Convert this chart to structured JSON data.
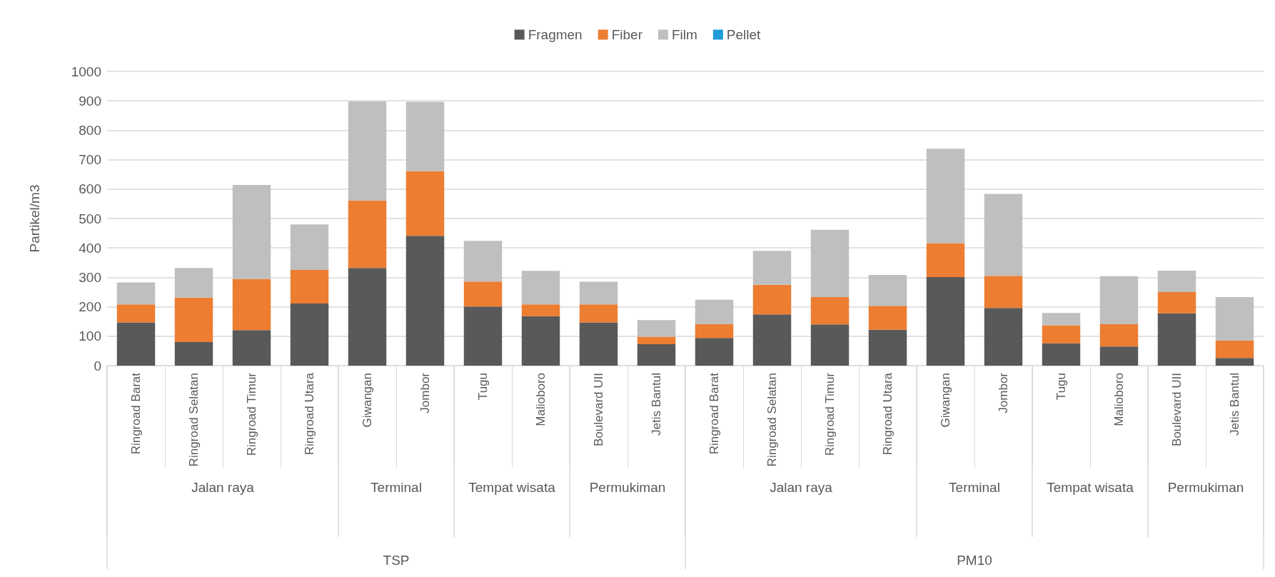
{
  "chart_data": {
    "type": "bar",
    "stacked": true,
    "ylabel": "Partikel/m3",
    "categories": [
      "Ringroad Barat",
      "Ringroad Selatan",
      "Ringroad Timur",
      "Ringroad Utara",
      "Giwangan",
      "Jombor",
      "Tugu",
      "Malioboro",
      "Boulevard UII",
      "Jetis Bantul",
      "Ringroad Barat",
      "Ringroad Selatan",
      "Ringroad Timur",
      "Ringroad Utara",
      "Giwangan",
      "Jombor",
      "Tugu",
      "Malioboro",
      "Boulevard UII",
      "Jetis Bantul"
    ],
    "series": [
      {
        "name": "Fragmen",
        "color": "#595959",
        "values": [
          147,
          80,
          121,
          211,
          332,
          441,
          201,
          168,
          147,
          73,
          94,
          174,
          140,
          122,
          301,
          196,
          76,
          65,
          178,
          26
        ]
      },
      {
        "name": "Fiber",
        "color": "#ed7d31",
        "values": [
          61,
          151,
          174,
          114,
          229,
          220,
          85,
          40,
          61,
          25,
          47,
          101,
          93,
          81,
          115,
          109,
          61,
          76,
          72,
          59
        ]
      },
      {
        "name": "Film",
        "color": "#bfbfbf",
        "values": [
          75,
          101,
          319,
          155,
          337,
          236,
          138,
          114,
          77,
          57,
          83,
          115,
          229,
          105,
          321,
          279,
          42,
          163,
          73,
          148
        ]
      },
      {
        "name": "Pellet",
        "color": "#1f9bd7",
        "values": [
          0,
          0,
          0,
          0,
          0,
          0,
          0,
          0,
          0,
          0,
          0,
          0,
          0,
          0,
          0,
          0,
          0,
          0,
          0,
          0
        ]
      }
    ],
    "ylim": [
      0,
      1000
    ],
    "yticks": [
      0,
      100,
      200,
      300,
      400,
      500,
      600,
      700,
      800,
      900,
      1000
    ],
    "grid": "y",
    "legend": "top",
    "annotations": [
      "Jalan raya",
      "Terminal",
      "Tempat wisata",
      "Permukiman",
      "Jalan raya",
      "Terminal",
      "Tempat wisata",
      "Permukiman",
      "TSP",
      "PM10"
    ]
  }
}
